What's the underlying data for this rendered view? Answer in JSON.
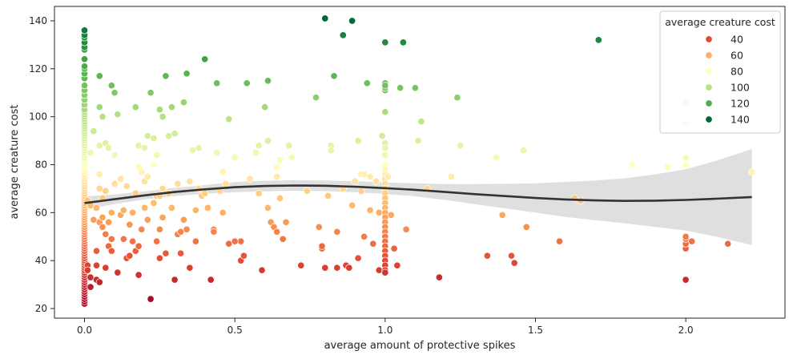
{
  "chart_data": {
    "type": "scatter",
    "xlabel": "average amount of protective spikes",
    "ylabel": "average creature cost",
    "xlim": [
      -0.1,
      2.33
    ],
    "ylim": [
      16,
      146
    ],
    "xticks": [
      0.0,
      0.5,
      1.0,
      1.5,
      2.0
    ],
    "xtick_labels": [
      "0.0",
      "0.5",
      "1.0",
      "1.5",
      "2.0"
    ],
    "yticks": [
      20,
      40,
      60,
      80,
      100,
      120,
      140
    ],
    "ytick_labels": [
      "20",
      "40",
      "60",
      "80",
      "100",
      "120",
      "140"
    ],
    "grid": false,
    "legend": {
      "title": "average creature cost",
      "placement": "top-right",
      "entries": [
        {
          "label": "40",
          "color": "#e34a33"
        },
        {
          "label": "60",
          "color": "#fdae61"
        },
        {
          "label": "80",
          "color": "#ffffbf"
        },
        {
          "label": "100",
          "color": "#b8e186"
        },
        {
          "label": "120",
          "color": "#4daf4a"
        },
        {
          "label": "140",
          "color": "#006837"
        }
      ]
    },
    "hue_scale": {
      "stops": [
        {
          "v": 22,
          "c": "#a50026"
        },
        {
          "v": 40,
          "c": "#e34a33"
        },
        {
          "v": 60,
          "c": "#fdae61"
        },
        {
          "v": 80,
          "c": "#ffffbf"
        },
        {
          "v": 100,
          "c": "#b8e186"
        },
        {
          "v": 120,
          "c": "#4daf4a"
        },
        {
          "v": 141,
          "c": "#006837"
        }
      ]
    },
    "points": [
      [
        0,
        22
      ],
      [
        0,
        23
      ],
      [
        0,
        24
      ],
      [
        0,
        25
      ],
      [
        0,
        26
      ],
      [
        0,
        27
      ],
      [
        0,
        28
      ],
      [
        0,
        29
      ],
      [
        0,
        30
      ],
      [
        0,
        31
      ],
      [
        0,
        32
      ],
      [
        0,
        33
      ],
      [
        0,
        34
      ],
      [
        0,
        35
      ],
      [
        0,
        36
      ],
      [
        0,
        37
      ],
      [
        0,
        38
      ],
      [
        0,
        39
      ],
      [
        0,
        40
      ],
      [
        0,
        41
      ],
      [
        0,
        42
      ],
      [
        0,
        43
      ],
      [
        0,
        44
      ],
      [
        0,
        45
      ],
      [
        0,
        46
      ],
      [
        0,
        47
      ],
      [
        0,
        48
      ],
      [
        0,
        49
      ],
      [
        0,
        50
      ],
      [
        0,
        51
      ],
      [
        0,
        52
      ],
      [
        0,
        53
      ],
      [
        0,
        54
      ],
      [
        0,
        55
      ],
      [
        0,
        56
      ],
      [
        0,
        57
      ],
      [
        0,
        58
      ],
      [
        0,
        59
      ],
      [
        0,
        60
      ],
      [
        0,
        61
      ],
      [
        0,
        62
      ],
      [
        0,
        63
      ],
      [
        0,
        64
      ],
      [
        0,
        65
      ],
      [
        0,
        66
      ],
      [
        0,
        67
      ],
      [
        0,
        68
      ],
      [
        0,
        69
      ],
      [
        0,
        70
      ],
      [
        0,
        71
      ],
      [
        0,
        72
      ],
      [
        0,
        73
      ],
      [
        0,
        74
      ],
      [
        0,
        75
      ],
      [
        0,
        76
      ],
      [
        0,
        77
      ],
      [
        0,
        78
      ],
      [
        0,
        79
      ],
      [
        0,
        80
      ],
      [
        0,
        81
      ],
      [
        0,
        82
      ],
      [
        0,
        83
      ],
      [
        0,
        84
      ],
      [
        0,
        85
      ],
      [
        0,
        86
      ],
      [
        0,
        87
      ],
      [
        0,
        88
      ],
      [
        0,
        89
      ],
      [
        0,
        90
      ],
      [
        0,
        91
      ],
      [
        0,
        92
      ],
      [
        0,
        93
      ],
      [
        0,
        94
      ],
      [
        0,
        95
      ],
      [
        0,
        96
      ],
      [
        0,
        97
      ],
      [
        0,
        98
      ],
      [
        0,
        99
      ],
      [
        0,
        100
      ],
      [
        0,
        101
      ],
      [
        0,
        102
      ],
      [
        0,
        103
      ],
      [
        0,
        105
      ],
      [
        0,
        107
      ],
      [
        0,
        109
      ],
      [
        0,
        111
      ],
      [
        0,
        113
      ],
      [
        0,
        116
      ],
      [
        0,
        118
      ],
      [
        0,
        120
      ],
      [
        0,
        121
      ],
      [
        0,
        124
      ],
      [
        0,
        128
      ],
      [
        0,
        129
      ],
      [
        0,
        131
      ],
      [
        0,
        133
      ],
      [
        0,
        134
      ],
      [
        0,
        136
      ],
      [
        0.01,
        38
      ],
      [
        0.01,
        36
      ],
      [
        0.01,
        65
      ],
      [
        0.02,
        29
      ],
      [
        0.02,
        33
      ],
      [
        0.02,
        63
      ],
      [
        0.02,
        85
      ],
      [
        0.03,
        94
      ],
      [
        0.03,
        57
      ],
      [
        0.04,
        32
      ],
      [
        0.04,
        38
      ],
      [
        0.04,
        44
      ],
      [
        0.04,
        62
      ],
      [
        0.05,
        117
      ],
      [
        0.05,
        104
      ],
      [
        0.05,
        88
      ],
      [
        0.05,
        76
      ],
      [
        0.05,
        70
      ],
      [
        0.05,
        56
      ],
      [
        0.05,
        31
      ],
      [
        0.06,
        54
      ],
      [
        0.06,
        58
      ],
      [
        0.06,
        66
      ],
      [
        0.06,
        100
      ],
      [
        0.07,
        89
      ],
      [
        0.07,
        69
      ],
      [
        0.07,
        51
      ],
      [
        0.07,
        37
      ],
      [
        0.08,
        87
      ],
      [
        0.08,
        56
      ],
      [
        0.08,
        46
      ],
      [
        0.09,
        113
      ],
      [
        0.09,
        60
      ],
      [
        0.09,
        49
      ],
      [
        0.09,
        44
      ],
      [
        0.1,
        110
      ],
      [
        0.1,
        84
      ],
      [
        0.1,
        72
      ],
      [
        0.11,
        101
      ],
      [
        0.11,
        35
      ],
      [
        0.12,
        74
      ],
      [
        0.12,
        59
      ],
      [
        0.13,
        61
      ],
      [
        0.13,
        49
      ],
      [
        0.14,
        71
      ],
      [
        0.14,
        41
      ],
      [
        0.15,
        42
      ],
      [
        0.15,
        55
      ],
      [
        0.16,
        60
      ],
      [
        0.16,
        48
      ],
      [
        0.17,
        104
      ],
      [
        0.17,
        68
      ],
      [
        0.17,
        44
      ],
      [
        0.18,
        88
      ],
      [
        0.18,
        79
      ],
      [
        0.18,
        46
      ],
      [
        0.18,
        34
      ],
      [
        0.19,
        77
      ],
      [
        0.19,
        53
      ],
      [
        0.2,
        87
      ],
      [
        0.2,
        73
      ],
      [
        0.2,
        62
      ],
      [
        0.21,
        92
      ],
      [
        0.21,
        75
      ],
      [
        0.21,
        57
      ],
      [
        0.22,
        110
      ],
      [
        0.22,
        24
      ],
      [
        0.23,
        91
      ],
      [
        0.23,
        80
      ],
      [
        0.23,
        64
      ],
      [
        0.24,
        84
      ],
      [
        0.24,
        67
      ],
      [
        0.24,
        48
      ],
      [
        0.25,
        103
      ],
      [
        0.25,
        67
      ],
      [
        0.25,
        53
      ],
      [
        0.25,
        41
      ],
      [
        0.26,
        100
      ],
      [
        0.26,
        70
      ],
      [
        0.26,
        58
      ],
      [
        0.27,
        117
      ],
      [
        0.27,
        43
      ],
      [
        0.28,
        92
      ],
      [
        0.28,
        68
      ],
      [
        0.29,
        104
      ],
      [
        0.29,
        62
      ],
      [
        0.3,
        93
      ],
      [
        0.3,
        32
      ],
      [
        0.31,
        51
      ],
      [
        0.31,
        72
      ],
      [
        0.32,
        52
      ],
      [
        0.32,
        43
      ],
      [
        0.33,
        106
      ],
      [
        0.33,
        57
      ],
      [
        0.34,
        118
      ],
      [
        0.34,
        53
      ],
      [
        0.35,
        37
      ],
      [
        0.35,
        73
      ],
      [
        0.36,
        86
      ],
      [
        0.37,
        48
      ],
      [
        0.37,
        61
      ],
      [
        0.38,
        87
      ],
      [
        0.38,
        70
      ],
      [
        0.39,
        67
      ],
      [
        0.4,
        124
      ],
      [
        0.4,
        68
      ],
      [
        0.41,
        62
      ],
      [
        0.42,
        32
      ],
      [
        0.43,
        53
      ],
      [
        0.43,
        52
      ],
      [
        0.44,
        114
      ],
      [
        0.44,
        85
      ],
      [
        0.45,
        69
      ],
      [
        0.46,
        77
      ],
      [
        0.46,
        60
      ],
      [
        0.47,
        72
      ],
      [
        0.48,
        99
      ],
      [
        0.48,
        47
      ],
      [
        0.5,
        83
      ],
      [
        0.5,
        48
      ],
      [
        0.52,
        48
      ],
      [
        0.52,
        40
      ],
      [
        0.53,
        42
      ],
      [
        0.54,
        114
      ],
      [
        0.55,
        74
      ],
      [
        0.57,
        85
      ],
      [
        0.58,
        88
      ],
      [
        0.58,
        68
      ],
      [
        0.59,
        36
      ],
      [
        0.6,
        104
      ],
      [
        0.61,
        115
      ],
      [
        0.61,
        90
      ],
      [
        0.61,
        62
      ],
      [
        0.62,
        56
      ],
      [
        0.63,
        54
      ],
      [
        0.64,
        52
      ],
      [
        0.64,
        79
      ],
      [
        0.64,
        75
      ],
      [
        0.65,
        82
      ],
      [
        0.65,
        66
      ],
      [
        0.66,
        49
      ],
      [
        0.67,
        56
      ],
      [
        0.68,
        88
      ],
      [
        0.69,
        83
      ],
      [
        0.72,
        38
      ],
      [
        0.74,
        69
      ],
      [
        0.77,
        108
      ],
      [
        0.78,
        54
      ],
      [
        0.79,
        45
      ],
      [
        0.79,
        46
      ],
      [
        0.8,
        141
      ],
      [
        0.8,
        37
      ],
      [
        0.81,
        67
      ],
      [
        0.82,
        88
      ],
      [
        0.82,
        86
      ],
      [
        0.83,
        117
      ],
      [
        0.84,
        37
      ],
      [
        0.84,
        52
      ],
      [
        0.86,
        70
      ],
      [
        0.87,
        38
      ],
      [
        0.88,
        37
      ],
      [
        0.89,
        63
      ],
      [
        0.9,
        73
      ],
      [
        0.91,
        90
      ],
      [
        0.91,
        41
      ],
      [
        0.92,
        76
      ],
      [
        0.92,
        69
      ],
      [
        0.93,
        76
      ],
      [
        0.93,
        50
      ],
      [
        0.94,
        114
      ],
      [
        0.95,
        61
      ],
      [
        0.95,
        75
      ],
      [
        0.96,
        47
      ],
      [
        0.97,
        73
      ],
      [
        0.98,
        36
      ],
      [
        0.98,
        60
      ],
      [
        0.99,
        92
      ],
      [
        1.0,
        89
      ],
      [
        1.0,
        87
      ],
      [
        1.0,
        84
      ],
      [
        1.0,
        80
      ],
      [
        1.0,
        78
      ],
      [
        1.0,
        76
      ],
      [
        1.0,
        74
      ],
      [
        1.0,
        72
      ],
      [
        1.0,
        70
      ],
      [
        1.0,
        68
      ],
      [
        1.0,
        66
      ],
      [
        1.0,
        64
      ],
      [
        1.0,
        62
      ],
      [
        1.0,
        60
      ],
      [
        1.0,
        58
      ],
      [
        1.0,
        56
      ],
      [
        1.0,
        54
      ],
      [
        1.0,
        52
      ],
      [
        1.0,
        50
      ],
      [
        1.0,
        48
      ],
      [
        1.0,
        46
      ],
      [
        1.0,
        44
      ],
      [
        1.0,
        42
      ],
      [
        1.0,
        40
      ],
      [
        1.0,
        38
      ],
      [
        1.0,
        36
      ],
      [
        1.0,
        35
      ],
      [
        1.0,
        102
      ],
      [
        1.0,
        111
      ],
      [
        1.0,
        112
      ],
      [
        1.0,
        114
      ],
      [
        1.0,
        131
      ],
      [
        1.01,
        75
      ],
      [
        1.02,
        59
      ],
      [
        1.03,
        45
      ],
      [
        1.04,
        38
      ],
      [
        1.05,
        112
      ],
      [
        1.06,
        131
      ],
      [
        1.07,
        53
      ],
      [
        1.1,
        112
      ],
      [
        1.11,
        90
      ],
      [
        1.12,
        98
      ],
      [
        1.14,
        70
      ],
      [
        1.18,
        33
      ],
      [
        1.22,
        75
      ],
      [
        1.24,
        108
      ],
      [
        1.25,
        88
      ],
      [
        1.34,
        42
      ],
      [
        1.37,
        83
      ],
      [
        1.39,
        59
      ],
      [
        1.42,
        42
      ],
      [
        1.43,
        39
      ],
      [
        1.46,
        86
      ],
      [
        1.47,
        54
      ],
      [
        1.58,
        48
      ],
      [
        1.63,
        66
      ],
      [
        1.65,
        65
      ],
      [
        1.71,
        132
      ],
      [
        1.82,
        80
      ],
      [
        1.94,
        79
      ],
      [
        2.0,
        32
      ],
      [
        2.0,
        45
      ],
      [
        2.0,
        47
      ],
      [
        2.0,
        49
      ],
      [
        2.0,
        50
      ],
      [
        2.0,
        80
      ],
      [
        2.0,
        83
      ],
      [
        2.0,
        97
      ],
      [
        2.0,
        106
      ],
      [
        2.02,
        48
      ],
      [
        2.14,
        47
      ],
      [
        2.22,
        77
      ],
      [
        0.5,
        48
      ],
      [
        0.86,
        134
      ],
      [
        0.89,
        140
      ],
      [
        1.0,
        113
      ]
    ],
    "regression": {
      "color": "#333333",
      "band_color": "#dcdcdc",
      "x": [
        0,
        0.1,
        0.2,
        0.3,
        0.4,
        0.5,
        0.6,
        0.7,
        0.8,
        0.9,
        1.0,
        1.1,
        1.2,
        1.3,
        1.4,
        1.5,
        1.6,
        1.7,
        1.8,
        1.9,
        2.0,
        2.1,
        2.22
      ],
      "y": [
        64,
        65.6,
        67.2,
        68.6,
        69.7,
        70.6,
        71.1,
        71.3,
        71.2,
        70.8,
        70.2,
        69.5,
        68.6,
        67.7,
        66.9,
        66.1,
        65.5,
        65.1,
        64.9,
        65.0,
        65.3,
        65.8,
        66.5
      ],
      "lower": [
        61.2,
        63.6,
        65.5,
        66.9,
        67.9,
        68.5,
        68.9,
        69.1,
        69.0,
        68.5,
        67.8,
        66.8,
        65.3,
        63.5,
        61.8,
        60.0,
        58.2,
        56.8,
        55.5,
        54.0,
        52.5,
        50.0,
        46.5
      ],
      "upper": [
        66.8,
        67.6,
        68.9,
        70.3,
        71.5,
        72.7,
        73.3,
        73.5,
        73.4,
        73.1,
        72.6,
        72.2,
        71.9,
        71.9,
        72.0,
        72.2,
        72.8,
        73.4,
        74.3,
        76.0,
        78.1,
        81.6,
        86.5
      ]
    }
  }
}
